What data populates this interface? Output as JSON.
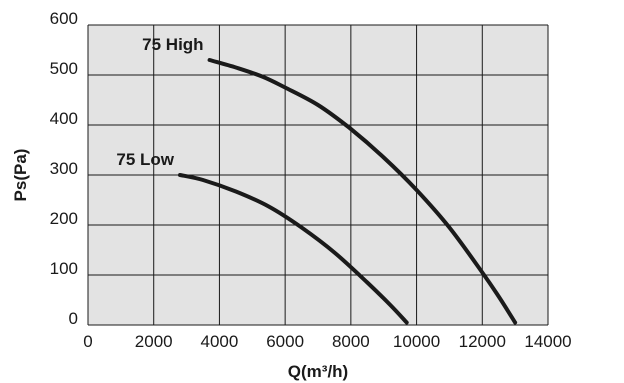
{
  "chart_data": {
    "type": "line",
    "xlabel": "Q(m³/h)",
    "ylabel": "Ps(Pa)",
    "xlim": [
      0,
      14000
    ],
    "ylim": [
      0,
      600
    ],
    "x_ticks": [
      "0",
      "2000",
      "4000",
      "6000",
      "8000",
      "10000",
      "12000",
      "14000"
    ],
    "y_ticks": [
      "0",
      "100",
      "200",
      "300",
      "400",
      "500",
      "600"
    ],
    "grid": true,
    "plot_background": "#e3e3e3",
    "line_color": "#1a1a1a",
    "series": [
      {
        "name": "75 High",
        "points": [
          [
            3700,
            530
          ],
          [
            4500,
            515
          ],
          [
            5300,
            497
          ],
          [
            6000,
            475
          ],
          [
            7000,
            440
          ],
          [
            8000,
            392
          ],
          [
            9000,
            335
          ],
          [
            10000,
            270
          ],
          [
            11000,
            195
          ],
          [
            12000,
            105
          ],
          [
            12500,
            57
          ],
          [
            13000,
            5
          ]
        ]
      },
      {
        "name": "75 Low",
        "points": [
          [
            2800,
            300
          ],
          [
            3500,
            290
          ],
          [
            4500,
            267
          ],
          [
            5500,
            237
          ],
          [
            6500,
            195
          ],
          [
            7500,
            145
          ],
          [
            8500,
            85
          ],
          [
            9200,
            40
          ],
          [
            9700,
            5
          ]
        ]
      }
    ]
  }
}
